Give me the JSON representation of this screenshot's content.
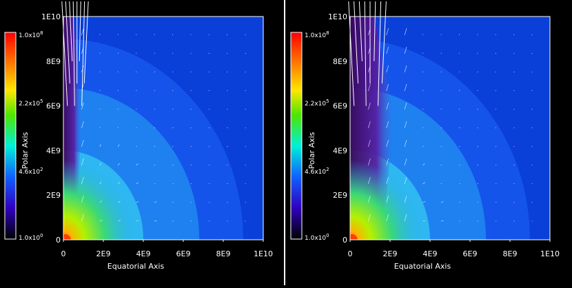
{
  "panels": [
    {
      "id": "left",
      "xlabel": "Equatorial Axis",
      "ylabel": "Polar Axis",
      "x_ticks": [
        "0",
        "2E9",
        "4E9",
        "6E9",
        "8E9",
        "1E10"
      ],
      "y_ticks": [
        "0",
        "2E9",
        "4E9",
        "6E9",
        "8E9",
        "1E10"
      ],
      "colorbar_labels": [
        {
          "base": "1.0x10",
          "exp": "8"
        },
        {
          "base": "2.2x10",
          "exp": "5"
        },
        {
          "base": "4.6x10",
          "exp": "2"
        },
        {
          "base": "1.0x10",
          "exp": "0"
        }
      ]
    },
    {
      "id": "right",
      "xlabel": "Equatorial Axis",
      "ylabel": "Polar Axis",
      "x_ticks": [
        "0",
        "2E9",
        "4E9",
        "6E9",
        "8E9",
        "1E10"
      ],
      "y_ticks": [
        "0",
        "2E9",
        "4E9",
        "6E9",
        "8E9",
        "1E10"
      ],
      "colorbar_labels": [
        {
          "base": "1.0x10",
          "exp": "8"
        },
        {
          "base": "2.2x10",
          "exp": "5"
        },
        {
          "base": "4.6x10",
          "exp": "2"
        },
        {
          "base": "1.0x10",
          "exp": "0"
        }
      ]
    }
  ],
  "chart_data": [
    {
      "type": "heatmap",
      "title": "",
      "xlabel": "Equatorial Axis",
      "ylabel": "Polar Axis",
      "xlim": [
        0,
        10000000000
      ],
      "ylim": [
        0,
        10000000000
      ],
      "colorbar": {
        "scale": "log",
        "min": 1,
        "max": 100000000,
        "tick_values": [
          100000000,
          220000,
          460,
          1
        ]
      },
      "overlay": "velocity vector field",
      "colors": {
        "background": "#0a3fd8",
        "outer": "#1454ea",
        "mid": "#1f80f0",
        "inner": "#2eb7f0",
        "core": "#3ce0c8",
        "hot": "#ff3b00"
      }
    },
    {
      "type": "heatmap",
      "title": "",
      "xlabel": "Equatorial Axis",
      "ylabel": "Polar Axis",
      "xlim": [
        0,
        10000000000
      ],
      "ylim": [
        0,
        10000000000
      ],
      "colorbar": {
        "scale": "log",
        "min": 1,
        "max": 100000000,
        "tick_values": [
          100000000,
          220000,
          460,
          1
        ]
      },
      "overlay": "velocity vector field",
      "colors": {
        "background": "#0a3fd8",
        "outer": "#1454ea",
        "mid": "#1f80f0",
        "inner": "#2eb7f0",
        "core": "#3ce0c8",
        "hot": "#ff3b00"
      }
    }
  ]
}
